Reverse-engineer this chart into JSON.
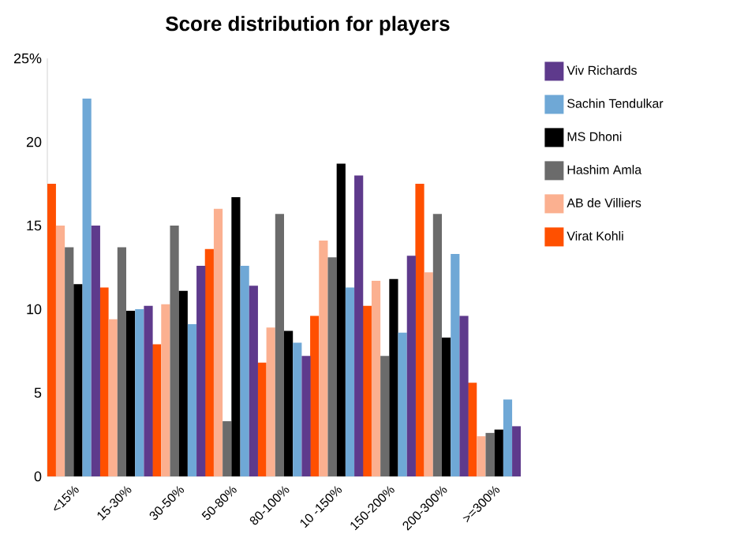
{
  "chart_data": {
    "type": "bar",
    "title": "Score distribution for players",
    "categories": [
      "<15%",
      "15-30%",
      "30-50%",
      "50-80%",
      "80-100%",
      "10 -150%",
      "150-200%",
      "200-300%",
      ">=300%"
    ],
    "series": [
      {
        "name": "Virat Kohli",
        "color": "#ff5000",
        "values": [
          17.5,
          11.3,
          7.9,
          13.6,
          6.8,
          9.6,
          10.2,
          17.5,
          5.6
        ]
      },
      {
        "name": "AB de Villiers",
        "color": "#fbb090",
        "values": [
          15.0,
          9.4,
          10.3,
          16.0,
          8.9,
          14.1,
          11.7,
          12.2,
          2.4
        ]
      },
      {
        "name": "Hashim Amla",
        "color": "#6b6b6b",
        "values": [
          13.7,
          13.7,
          15.0,
          3.3,
          15.7,
          13.1,
          7.2,
          15.7,
          2.6
        ]
      },
      {
        "name": "MS Dhoni",
        "color": "#000000",
        "values": [
          11.5,
          9.9,
          11.1,
          16.7,
          8.7,
          18.7,
          11.8,
          8.3,
          2.8
        ]
      },
      {
        "name": "Sachin Tendulkar",
        "color": "#6fa8d6",
        "values": [
          22.6,
          10.0,
          9.1,
          12.6,
          8.0,
          11.3,
          8.6,
          13.3,
          4.6
        ]
      },
      {
        "name": "Viv Richards",
        "color": "#5e3a8c",
        "values": [
          15.0,
          10.2,
          12.6,
          11.4,
          7.2,
          18.0,
          13.2,
          9.6,
          3.0
        ]
      }
    ],
    "ylim": [
      0,
      25
    ],
    "yticks": [
      0,
      5,
      10,
      15,
      20,
      {
        "value": 25,
        "label": "25%"
      }
    ],
    "grid": false,
    "legend": "right"
  }
}
